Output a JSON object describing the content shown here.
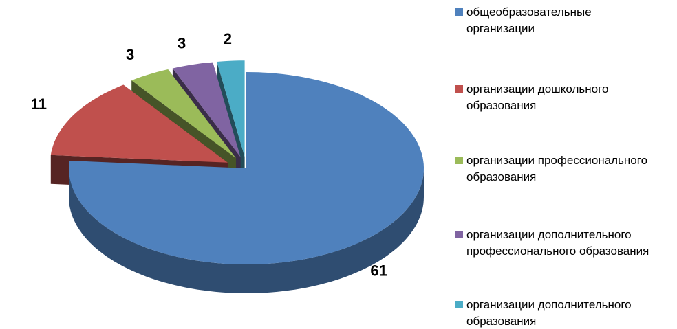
{
  "chart_data": {
    "type": "pie",
    "categories": [
      "общеобразовательные организации",
      "организации дошкольного образования",
      "организации профессионального образования",
      "организации дополнительного профессионального образования",
      "организации дополнительного образования"
    ],
    "values": [
      61,
      11,
      3,
      3,
      2
    ],
    "colors": [
      "#4f81bd",
      "#c0504d",
      "#9bbb59",
      "#8064a2",
      "#4bacc6"
    ],
    "legend": "right"
  }
}
